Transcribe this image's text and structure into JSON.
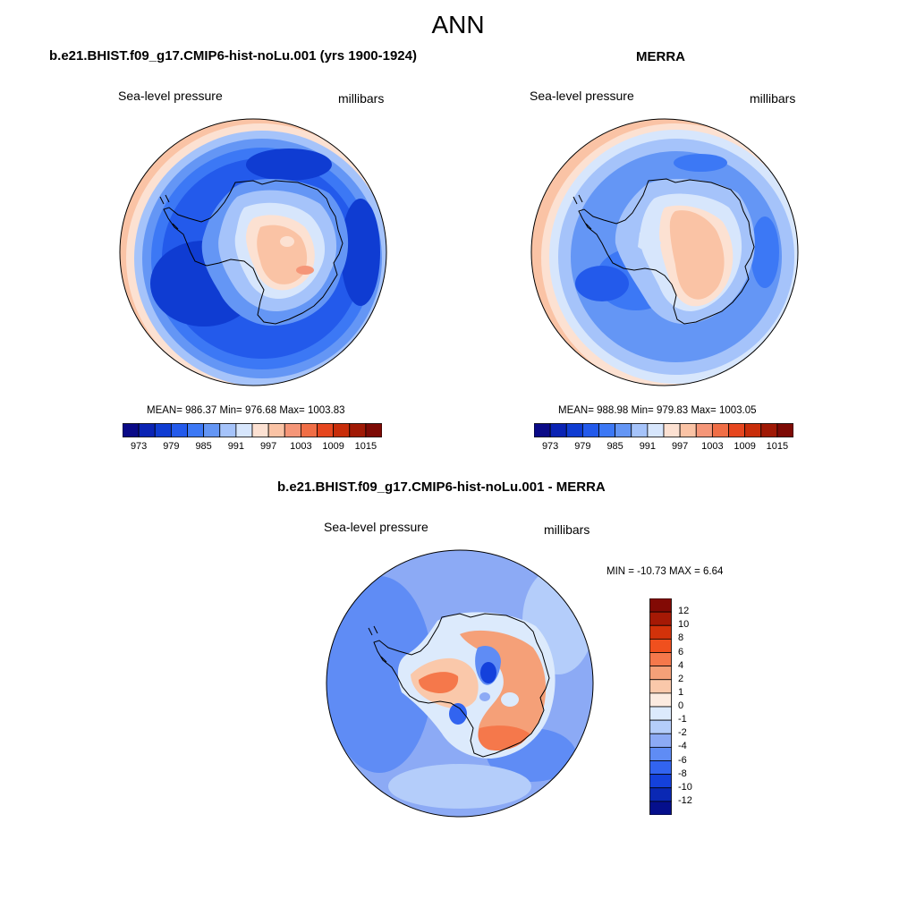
{
  "figure": {
    "title": "ANN"
  },
  "panels": [
    {
      "title": "b.e21.BHIST.f09_g17.CMIP6-hist-noLu.001 (yrs 1900-1924)",
      "left_label": "Sea-level pressure",
      "right_label": "millibars",
      "stats": "MEAN= 986.37  Min= 976.68  Max= 1003.83",
      "colorbar_ticks": [
        "973",
        "979",
        "985",
        "991",
        "997",
        "1003",
        "1009",
        "1015"
      ]
    },
    {
      "title": "MERRA",
      "left_label": "Sea-level pressure",
      "right_label": "millibars",
      "stats": "MEAN= 988.98  Min= 979.83  Max= 1003.05",
      "colorbar_ticks": [
        "973",
        "979",
        "985",
        "991",
        "997",
        "1003",
        "1009",
        "1015"
      ]
    },
    {
      "title": "b.e21.BHIST.f09_g17.CMIP6-hist-noLu.001 - MERRA",
      "left_label": "Sea-level pressure",
      "right_label": "millibars",
      "stats": "MIN = -10.73 MAX =   6.64",
      "colorbar_ticks": [
        "12",
        "10",
        "8",
        "6",
        "4",
        "2",
        "1",
        "0",
        "-1",
        "-2",
        "-4",
        "-6",
        "-8",
        "-10",
        "-12"
      ]
    }
  ],
  "colors": {
    "abs_scale": [
      "#0a0a87",
      "#0a23b4",
      "#0f3cd2",
      "#235aeb",
      "#3c78f5",
      "#6496f5",
      "#a5c3fa",
      "#d7e6fc",
      "#fce1d2",
      "#fac3a5",
      "#f59678",
      "#f06e46",
      "#e6461e",
      "#c82d0a",
      "#a01905",
      "#7d0a05"
    ],
    "diff_scale": [
      "#820a05",
      "#a51905",
      "#d2320a",
      "#f0501e",
      "#f5784b",
      "#f5a078",
      "#fac8aa",
      "#fcebe0",
      "#dceafc",
      "#b4cdfa",
      "#8caaf5",
      "#5f8cf5",
      "#3264f0",
      "#1441dc",
      "#0a28b4",
      "#050f8c"
    ],
    "land_outline": "#000000"
  }
}
